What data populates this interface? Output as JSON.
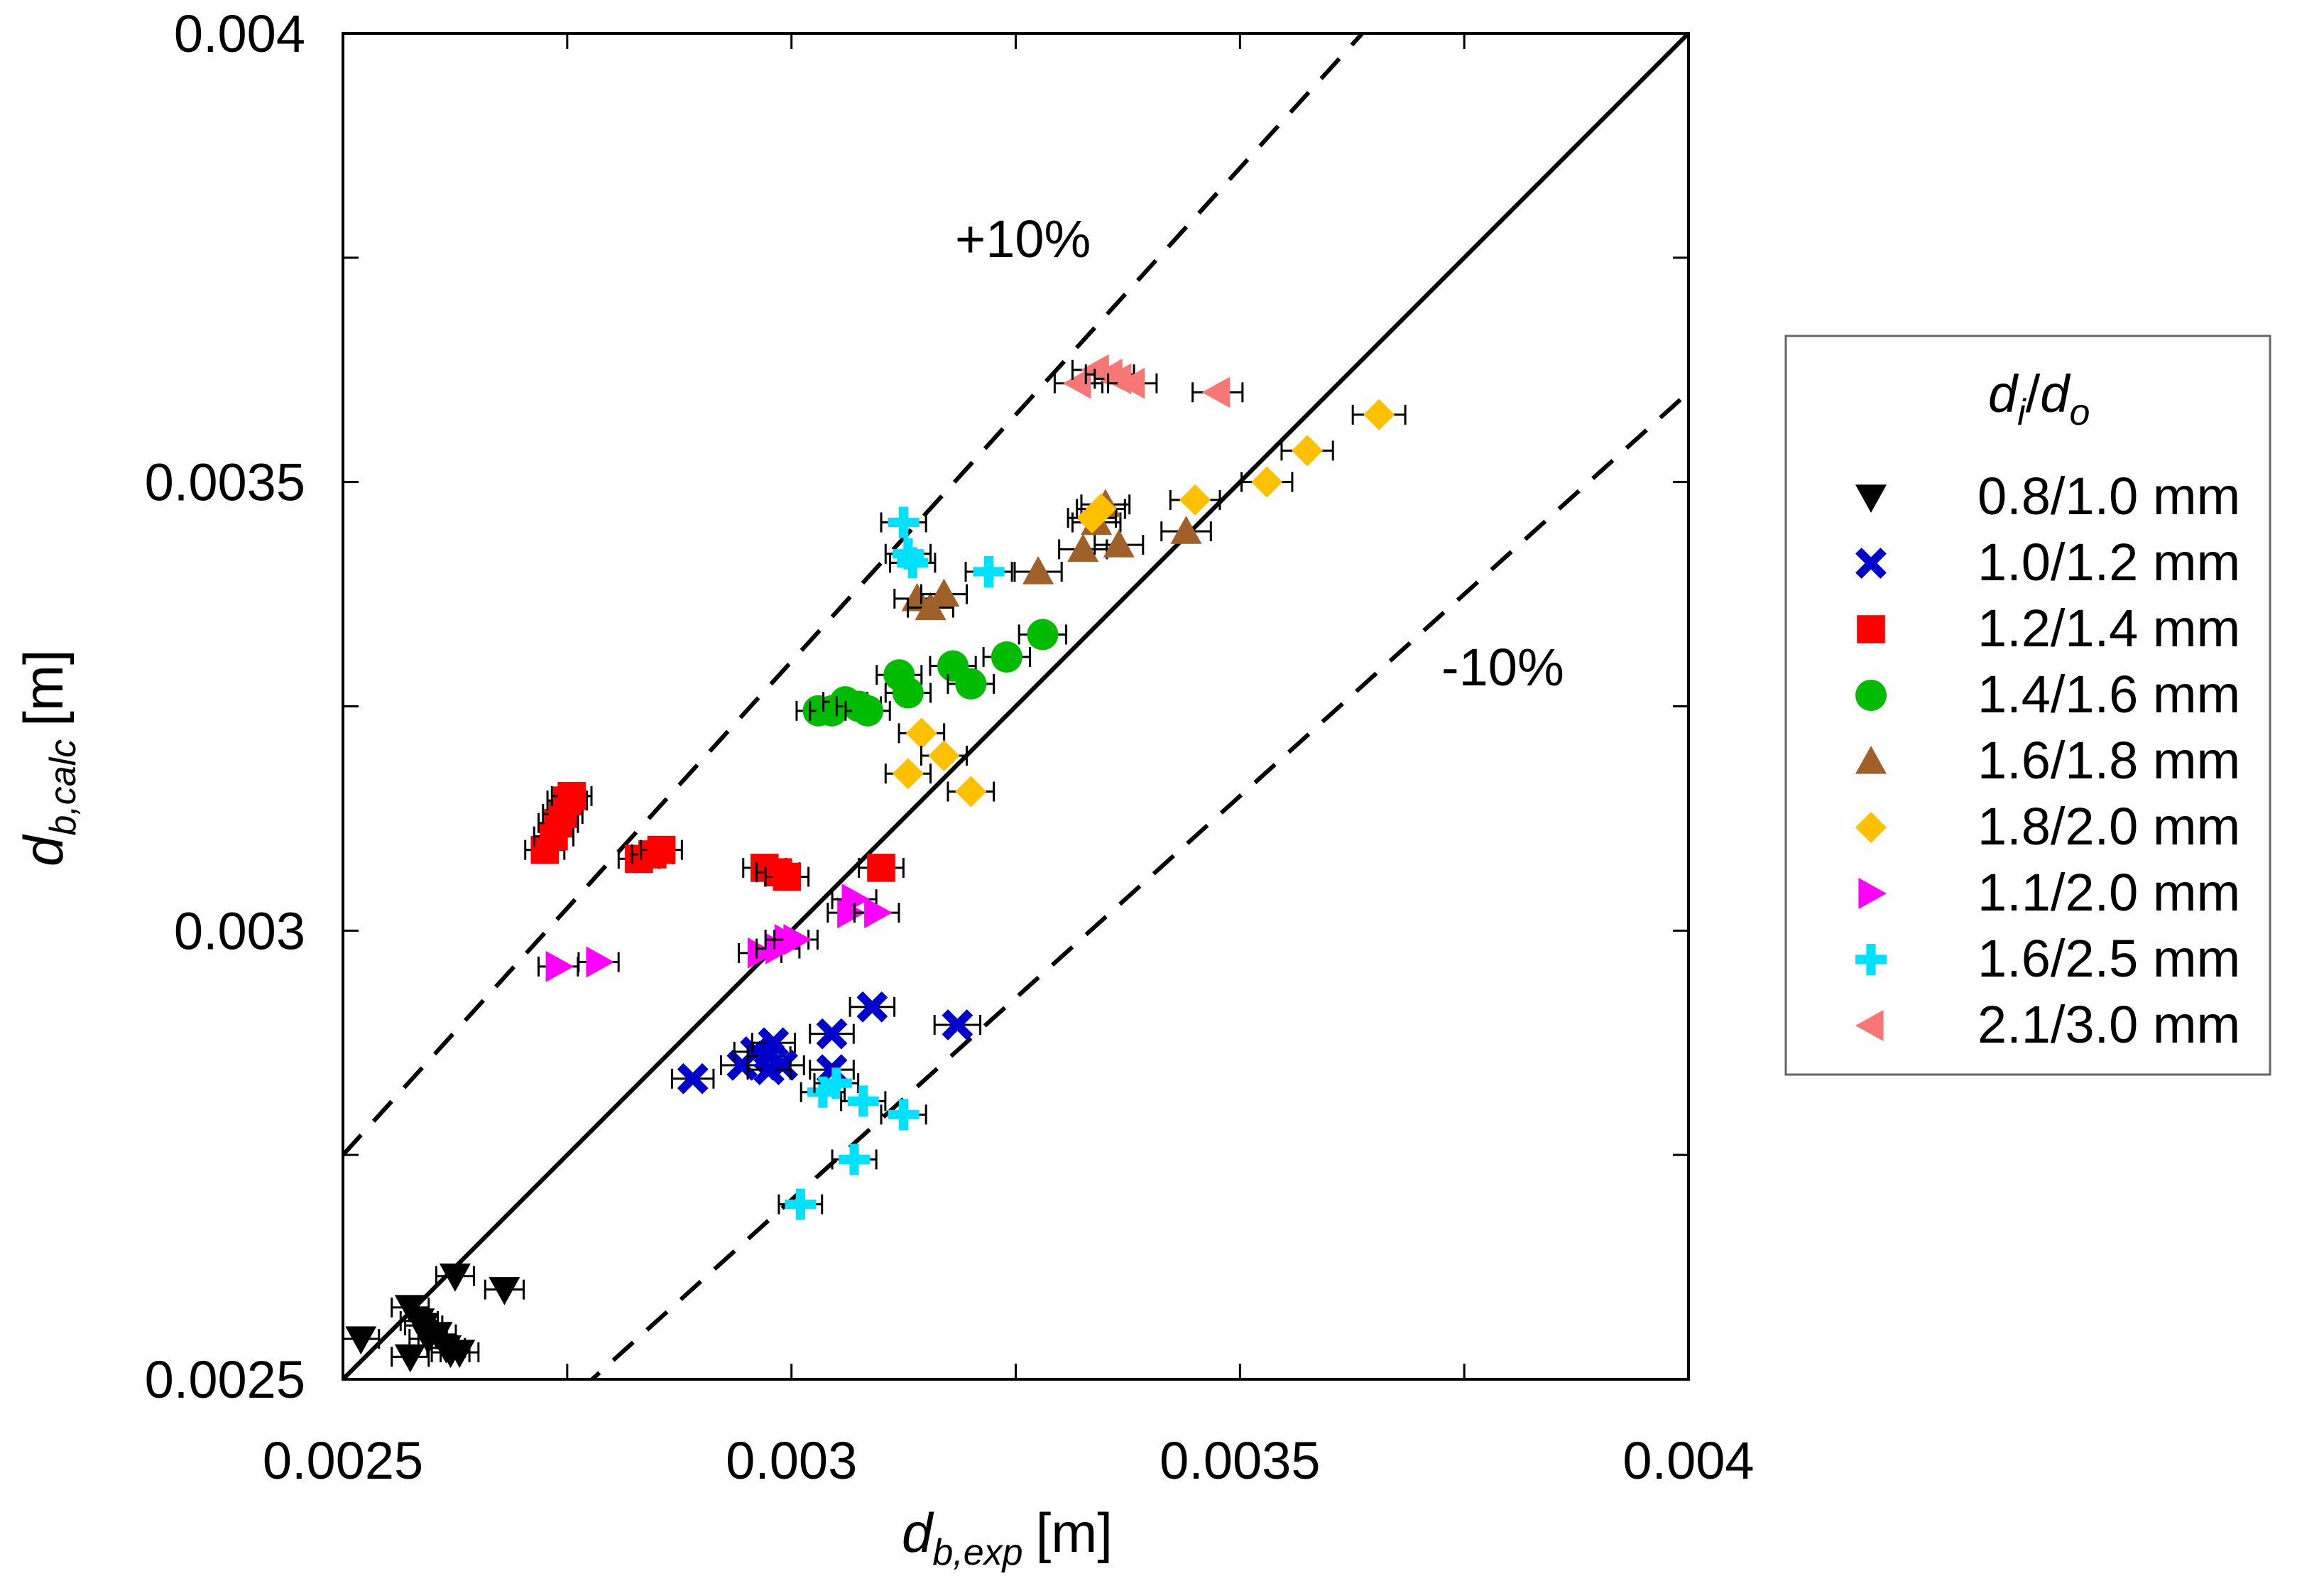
{
  "chart_data": {
    "type": "scatter",
    "title": "",
    "xlabel": {
      "main": "d",
      "sub": "b,exp",
      "unit": "[m]"
    },
    "ylabel": {
      "main": "d",
      "sub": "b,calc",
      "unit": "[m]"
    },
    "xlim": [
      0.0025,
      0.004
    ],
    "ylim": [
      0.0025,
      0.004
    ],
    "x_ticks": [
      "0.0025",
      "0.003",
      "0.0035",
      "0.004"
    ],
    "y_ticks": [
      "0.0025",
      "0.003",
      "0.0035",
      "0.004"
    ],
    "x_tick_values": [
      0.0025,
      0.003,
      0.0035,
      0.004
    ],
    "y_tick_values": [
      0.0025,
      0.003,
      0.0035,
      0.004
    ],
    "grid": false,
    "reference_lines": [
      {
        "name": "parity",
        "label": "",
        "factor": 1.0,
        "style": "solid"
      },
      {
        "name": "plus10",
        "label": "+10%",
        "factor": 1.1,
        "style": "dashed"
      },
      {
        "name": "minus10",
        "label": "-10%",
        "factor": 0.9,
        "style": "dashed"
      }
    ],
    "legend": {
      "title_main": "d",
      "title_sub1": "i",
      "title_sep": "/",
      "title_sub2": "o",
      "placement": "right"
    },
    "series": [
      {
        "name": "0.8/1.0 mm",
        "marker": "triangle-down",
        "color": "#000000",
        "x": [
          0.00252,
          0.002575,
          0.002585,
          0.002595,
          0.002605,
          0.00262,
          0.002625,
          0.00268,
          0.002575,
          0.00259,
          0.002615,
          0.00263
        ],
        "y": [
          0.002545,
          0.00258,
          0.002565,
          0.002545,
          0.00255,
          0.00253,
          0.002615,
          0.0026,
          0.002525,
          0.00256,
          0.002535,
          0.00253
        ]
      },
      {
        "name": "1.0/1.2 mm",
        "marker": "x",
        "color": "#0000cc",
        "x": [
          0.00289,
          0.002945,
          0.00296,
          0.002975,
          0.00298,
          0.00299,
          0.003045,
          0.003045,
          0.00309,
          0.003185,
          0.002975
        ],
        "y": [
          0.002835,
          0.00285,
          0.002865,
          0.00286,
          0.002875,
          0.00285,
          0.002845,
          0.002885,
          0.002915,
          0.002895,
          0.002845
        ]
      },
      {
        "name": "1.2/1.4 mm",
        "marker": "square",
        "color": "#ff0000",
        "x": [
          0.002725,
          0.002735,
          0.00274,
          0.002745,
          0.00275,
          0.002755,
          0.00283,
          0.002845,
          0.002855,
          0.00297,
          0.002985,
          0.002995,
          0.0031
        ],
        "y": [
          0.00309,
          0.003105,
          0.00312,
          0.00313,
          0.003145,
          0.00315,
          0.00308,
          0.003085,
          0.00309,
          0.00307,
          0.003065,
          0.00306,
          0.00307
        ]
      },
      {
        "name": "1.4/1.6 mm",
        "marker": "circle",
        "color": "#00bb00",
        "x": [
          0.00303,
          0.003045,
          0.00306,
          0.003075,
          0.003085,
          0.00312,
          0.00313,
          0.00318,
          0.0032,
          0.00324,
          0.00328
        ],
        "y": [
          0.003245,
          0.003245,
          0.003255,
          0.00325,
          0.003245,
          0.003285,
          0.003265,
          0.003295,
          0.003275,
          0.003305,
          0.00333
        ]
      },
      {
        "name": "1.6/1.8 mm",
        "marker": "triangle-up",
        "color": "#a0602a",
        "x": [
          0.00314,
          0.003155,
          0.00317,
          0.003275,
          0.003325,
          0.00334,
          0.00335,
          0.003365,
          0.00344
        ],
        "y": [
          0.00337,
          0.00336,
          0.003375,
          0.0034,
          0.003425,
          0.003455,
          0.003475,
          0.00343,
          0.003445
        ]
      },
      {
        "name": "1.8/2.0 mm",
        "marker": "diamond",
        "color": "#ffc000",
        "x": [
          0.00313,
          0.003145,
          0.00317,
          0.0032,
          0.003335,
          0.003345,
          0.00345,
          0.00353,
          0.003575,
          0.003655
        ],
        "y": [
          0.003175,
          0.00322,
          0.003195,
          0.003155,
          0.00346,
          0.00347,
          0.00348,
          0.0035,
          0.003535,
          0.003575
        ]
      },
      {
        "name": "1.1/2.0 mm",
        "marker": "triangle-right",
        "color": "#ff00ff",
        "x": [
          0.00274,
          0.002785,
          0.002965,
          0.002985,
          0.002995,
          0.003005,
          0.003065,
          0.00307,
          0.003095
        ],
        "y": [
          0.00296,
          0.002965,
          0.002975,
          0.00298,
          0.00299,
          0.00299,
          0.00302,
          0.003035,
          0.00302
        ]
      },
      {
        "name": "1.6/2.5 mm",
        "marker": "plus",
        "color": "#00e0ff",
        "x": [
          0.00301,
          0.003035,
          0.00305,
          0.00307,
          0.00308,
          0.003125,
          0.003125,
          0.00313,
          0.003135,
          0.00322
        ],
        "y": [
          0.002695,
          0.00282,
          0.00283,
          0.002745,
          0.00281,
          0.002795,
          0.003455,
          0.00342,
          0.00341,
          0.0034
        ]
      },
      {
        "name": "2.1/3.0 mm",
        "marker": "triangle-left",
        "color": "#f77777",
        "x": [
          0.00332,
          0.00334,
          0.003355,
          0.003365,
          0.00338,
          0.003475
        ],
        "y": [
          0.00361,
          0.003625,
          0.00362,
          0.003615,
          0.00361,
          0.0036
        ]
      }
    ]
  }
}
